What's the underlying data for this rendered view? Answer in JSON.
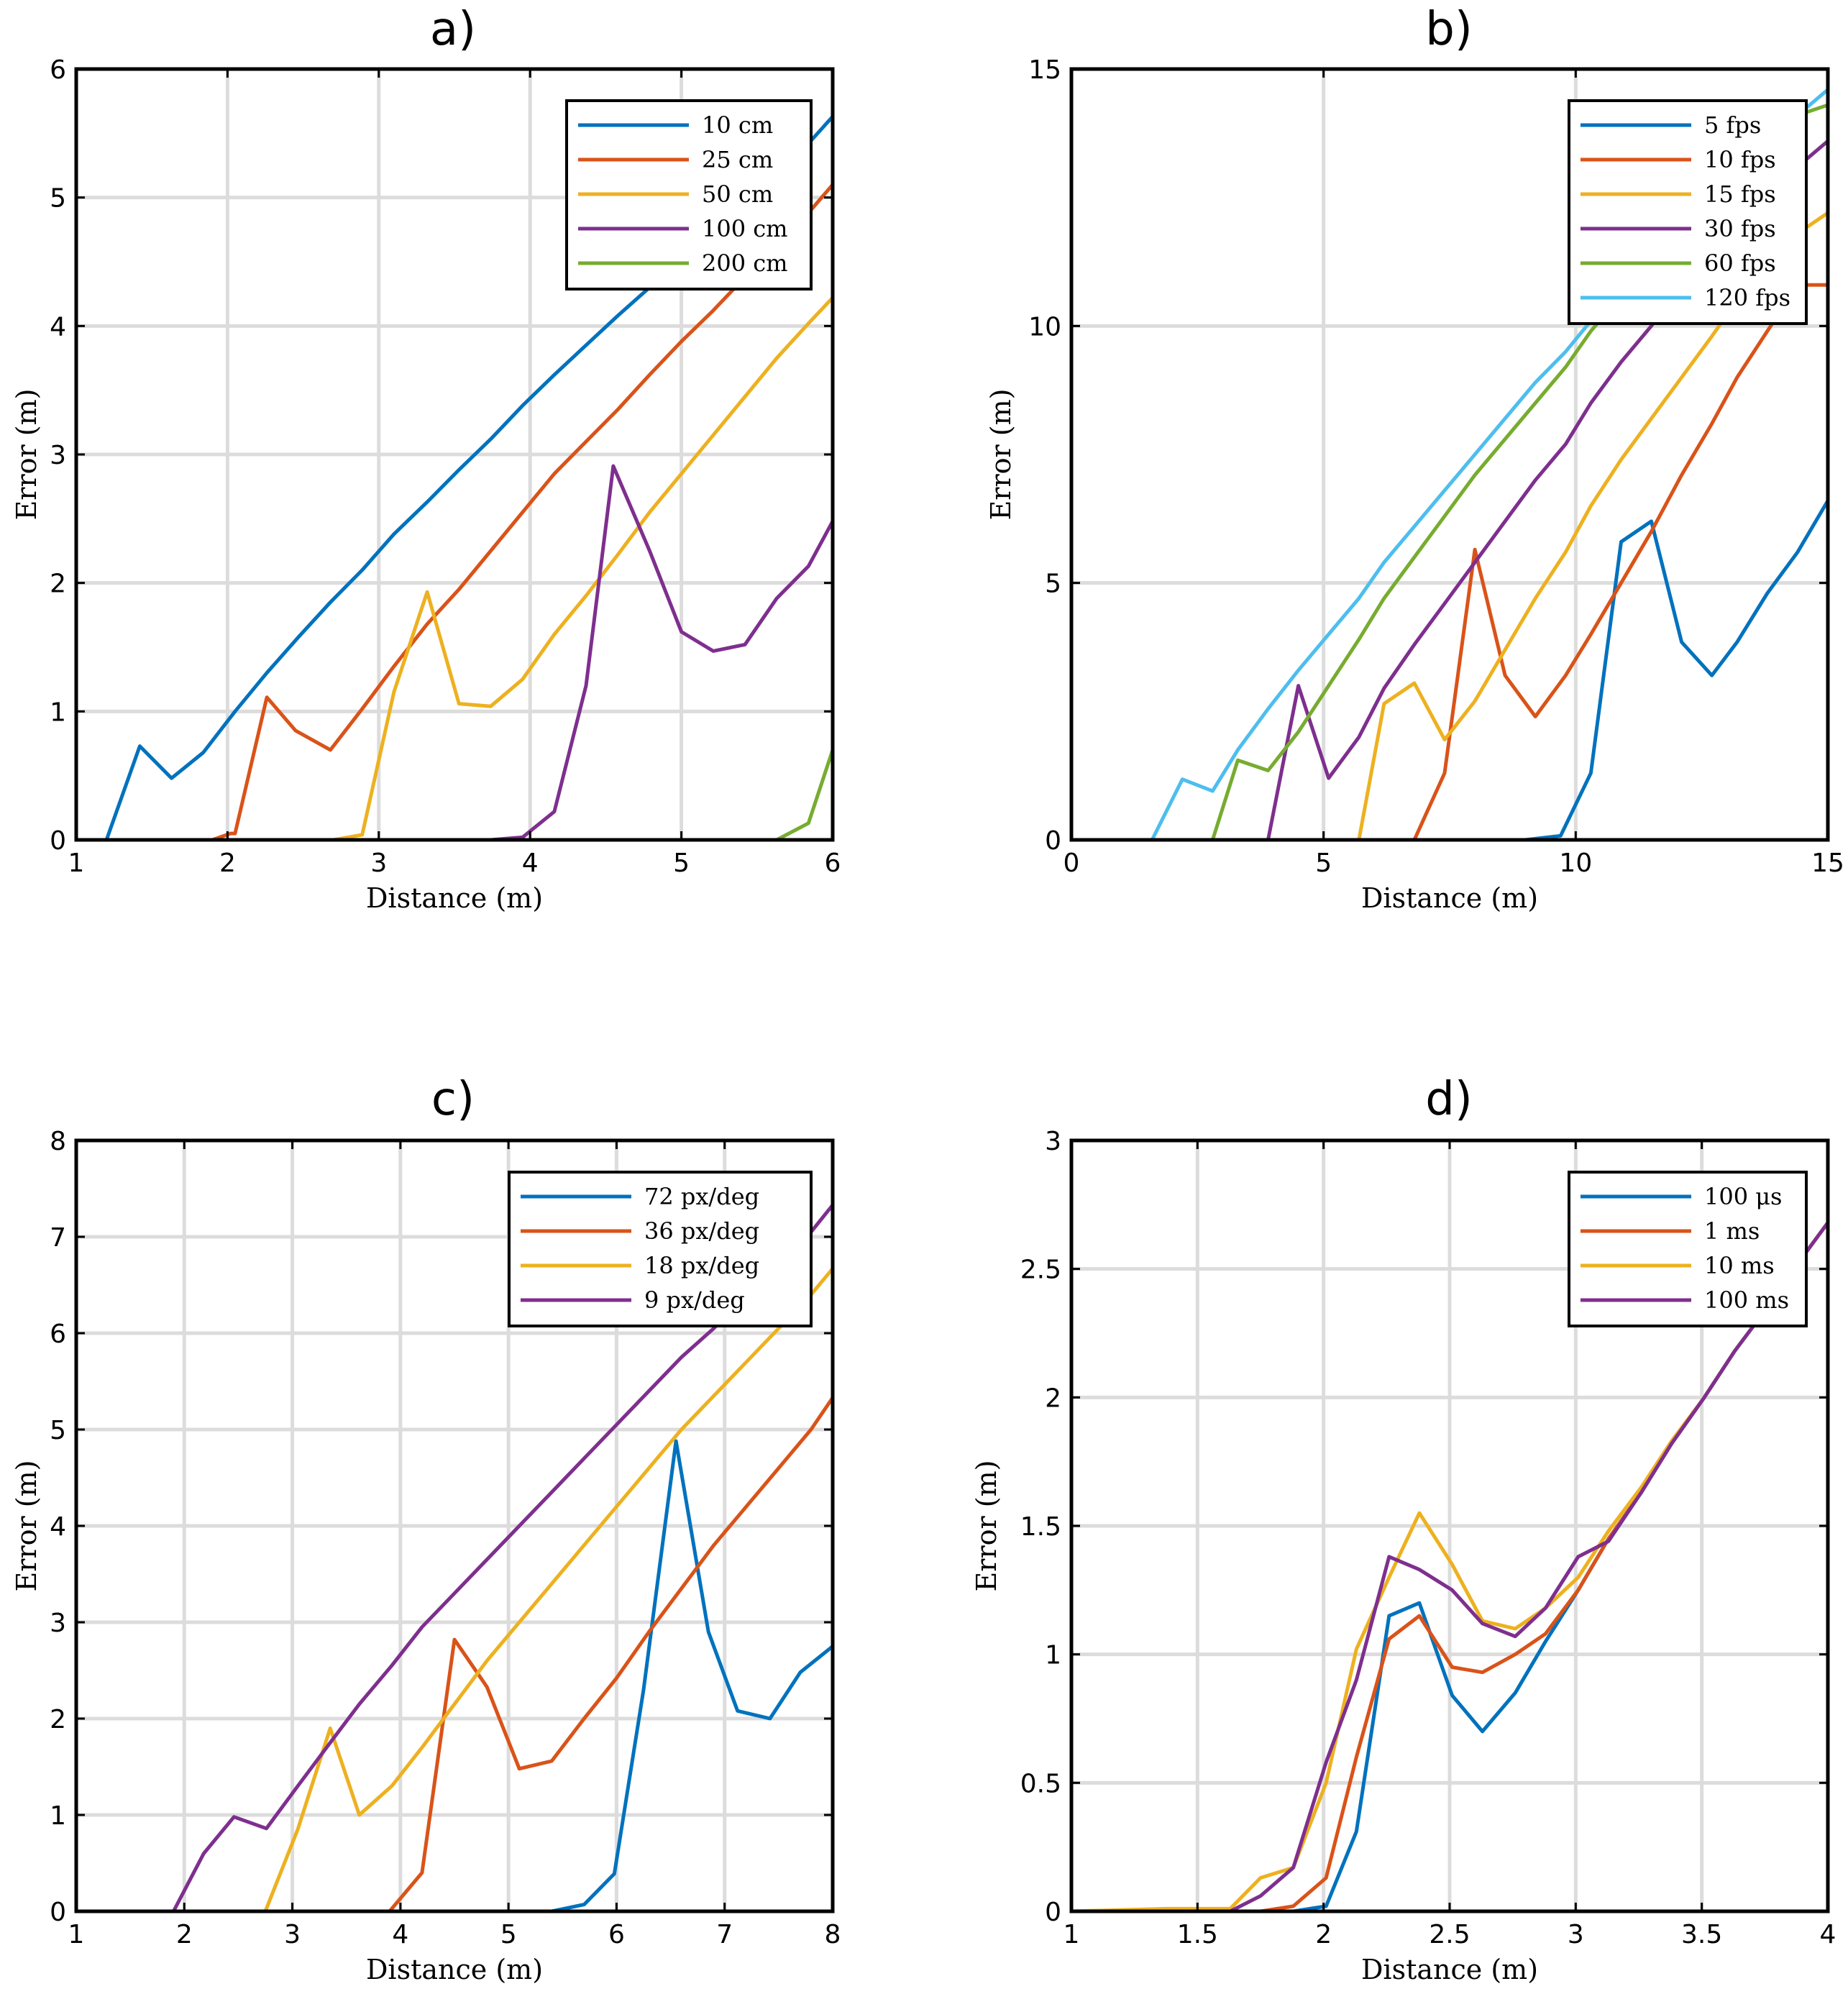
{
  "chart_data": [
    {
      "type": "line",
      "title": "a)",
      "xlabel": "Distance (m)",
      "ylabel": "Error (m)",
      "xlim": [
        1,
        6
      ],
      "ylim": [
        0,
        6
      ],
      "xticks": [
        1,
        2,
        3,
        4,
        5,
        6
      ],
      "yticks": [
        0,
        1,
        2,
        3,
        4,
        5,
        6
      ],
      "xtick_labels": [
        "1",
        "2",
        "3",
        "4",
        "5",
        "6"
      ],
      "ytick_labels": [
        "0",
        "1",
        "2",
        "3",
        "4",
        "5",
        "6"
      ],
      "grid": true,
      "legend_position": "top-right",
      "series": [
        {
          "name": "10 cm",
          "color": "#0072BD",
          "x": [
            1,
            1.2,
            1.42,
            1.63,
            1.84,
            2.05,
            2.26,
            2.47,
            2.68,
            2.89,
            3.1,
            3.32,
            3.53,
            3.74,
            3.95,
            4.16,
            4.37,
            4.58,
            4.79,
            5.0,
            5.21,
            5.42,
            5.63,
            5.84,
            6.0
          ],
          "y": [
            0,
            0,
            0.73,
            0.48,
            0.68,
            1.0,
            1.3,
            1.58,
            1.85,
            2.1,
            2.38,
            2.63,
            2.88,
            3.12,
            3.38,
            3.62,
            3.85,
            4.08,
            4.3,
            4.52,
            4.75,
            4.98,
            5.2,
            5.42,
            5.63
          ]
        },
        {
          "name": "25 cm",
          "color": "#D95319",
          "x": [
            1,
            1.5,
            1.9,
            2.02,
            2.05,
            2.26,
            2.45,
            2.68,
            2.89,
            3.1,
            3.32,
            3.53,
            3.74,
            3.95,
            4.16,
            4.37,
            4.58,
            4.79,
            5.0,
            5.21,
            5.42,
            5.63,
            5.84,
            6.0
          ],
          "y": [
            0,
            0,
            0,
            0.05,
            0.05,
            1.11,
            0.85,
            0.7,
            1.02,
            1.35,
            1.68,
            1.95,
            2.25,
            2.55,
            2.85,
            3.1,
            3.35,
            3.62,
            3.88,
            4.12,
            4.38,
            4.62,
            4.88,
            5.1
          ]
        },
        {
          "name": "50 cm",
          "color": "#EDB120",
          "x": [
            1,
            2.5,
            2.7,
            2.89,
            3.1,
            3.32,
            3.53,
            3.74,
            3.95,
            4.16,
            4.37,
            4.58,
            4.79,
            5.0,
            5.21,
            5.42,
            5.63,
            5.84,
            6.0
          ],
          "y": [
            0,
            0,
            0,
            0.04,
            1.15,
            1.93,
            1.06,
            1.04,
            1.25,
            1.6,
            1.9,
            2.22,
            2.55,
            2.85,
            3.15,
            3.45,
            3.75,
            4.02,
            4.22
          ]
        },
        {
          "name": "100 cm",
          "color": "#7E2F8E",
          "x": [
            1,
            3.5,
            3.74,
            3.95,
            4.16,
            4.37,
            4.55,
            4.79,
            5.0,
            5.21,
            5.42,
            5.63,
            5.84,
            6.0
          ],
          "y": [
            0,
            0,
            0,
            0.02,
            0.22,
            1.2,
            2.91,
            2.25,
            1.62,
            1.47,
            1.52,
            1.88,
            2.13,
            2.48
          ]
        },
        {
          "name": "200 cm",
          "color": "#77AC30",
          "x": [
            1,
            5.42,
            5.63,
            5.84,
            6.0
          ],
          "y": [
            0,
            0,
            0,
            0.13,
            0.7
          ]
        }
      ]
    },
    {
      "type": "line",
      "title": "b)",
      "xlabel": "Distance (m)",
      "ylabel": "Error (m)",
      "xlim": [
        0,
        15
      ],
      "ylim": [
        0,
        15
      ],
      "xticks": [
        0,
        5,
        10,
        15
      ],
      "yticks": [
        0,
        5,
        10,
        15
      ],
      "xtick_labels": [
        "0",
        "5",
        "10",
        "15"
      ],
      "ytick_labels": [
        "0",
        "5",
        "10",
        "15"
      ],
      "grid": true,
      "legend_position": "top-right",
      "series": [
        {
          "name": "5 fps",
          "color": "#0072BD",
          "x": [
            1,
            9.0,
            9.7,
            10.3,
            10.9,
            11.5,
            12.1,
            12.7,
            13.2,
            13.8,
            14.4,
            15.0
          ],
          "y": [
            0,
            0,
            0.08,
            1.3,
            5.8,
            6.2,
            3.85,
            3.2,
            3.85,
            4.8,
            5.6,
            6.6
          ]
        },
        {
          "name": "10 fps",
          "color": "#D95319",
          "x": [
            1,
            6.8,
            7.4,
            8.0,
            8.6,
            9.2,
            9.8,
            10.3,
            10.9,
            11.5,
            12.1,
            12.7,
            13.2,
            13.8,
            14.4,
            15.0
          ],
          "y": [
            0,
            0,
            1.3,
            5.65,
            3.2,
            2.4,
            3.2,
            4.0,
            5.0,
            6.0,
            7.1,
            8.1,
            9.0,
            9.9,
            10.8,
            10.8
          ]
        },
        {
          "name": "15 fps",
          "color": "#EDB120",
          "x": [
            1,
            5.7,
            6.2,
            6.8,
            7.4,
            8.0,
            8.6,
            9.2,
            9.8,
            10.3,
            10.9,
            11.5,
            12.1,
            12.7,
            13.2,
            13.8,
            14.4,
            15.0
          ],
          "y": [
            0,
            0,
            2.65,
            3.05,
            1.95,
            2.7,
            3.7,
            4.7,
            5.6,
            6.5,
            7.4,
            8.2,
            9.0,
            9.8,
            10.5,
            11.2,
            11.8,
            12.2
          ]
        },
        {
          "name": "30 fps",
          "color": "#7E2F8E",
          "x": [
            1,
            3.9,
            4.5,
            5.1,
            5.7,
            6.2,
            6.8,
            7.4,
            8.0,
            8.6,
            9.2,
            9.8,
            10.3,
            10.9,
            11.5,
            12.1,
            12.7,
            13.2,
            13.8,
            14.4,
            15.0
          ],
          "y": [
            0,
            0,
            3.0,
            1.2,
            2.0,
            2.95,
            3.8,
            4.6,
            5.4,
            6.2,
            7.0,
            7.7,
            8.5,
            9.3,
            10.0,
            10.8,
            11.4,
            12.0,
            12.6,
            13.1,
            13.6
          ]
        },
        {
          "name": "60 fps",
          "color": "#77AC30",
          "x": [
            1,
            2.8,
            3.3,
            3.9,
            4.5,
            5.1,
            5.7,
            6.2,
            6.8,
            7.4,
            8.0,
            8.6,
            9.2,
            9.8,
            10.3,
            10.9,
            11.5,
            12.1,
            12.7,
            13.2,
            13.8,
            14.4,
            15.0
          ],
          "y": [
            0,
            0,
            1.55,
            1.35,
            2.1,
            3.0,
            3.9,
            4.7,
            5.5,
            6.3,
            7.1,
            7.8,
            8.5,
            9.2,
            9.9,
            10.6,
            11.3,
            11.9,
            12.5,
            13.1,
            13.6,
            14.1,
            14.3
          ]
        },
        {
          "name": "120 fps",
          "color": "#4DBEEE",
          "x": [
            1,
            1.6,
            2.2,
            2.8,
            3.3,
            3.9,
            4.5,
            5.1,
            5.7,
            6.2,
            6.8,
            7.4,
            8.0,
            8.6,
            9.2,
            9.8,
            10.3,
            10.9,
            11.5,
            12.1,
            12.7,
            13.2,
            13.8,
            14.4,
            15.0
          ],
          "y": [
            0,
            0,
            1.18,
            0.95,
            1.75,
            2.55,
            3.3,
            4.0,
            4.7,
            5.4,
            6.1,
            6.8,
            7.5,
            8.2,
            8.9,
            9.5,
            10.1,
            10.7,
            11.3,
            11.9,
            12.5,
            13.1,
            13.6,
            14.1,
            14.6
          ]
        }
      ]
    },
    {
      "type": "line",
      "title": "c)",
      "xlabel": "Distance (m)",
      "ylabel": "Error (m)",
      "xlim": [
        1,
        8
      ],
      "ylim": [
        0,
        8
      ],
      "xticks": [
        1,
        2,
        3,
        4,
        5,
        6,
        7,
        8
      ],
      "yticks": [
        0,
        1,
        2,
        3,
        4,
        5,
        6,
        7,
        8
      ],
      "xtick_labels": [
        "1",
        "2",
        "3",
        "4",
        "5",
        "6",
        "7",
        "8"
      ],
      "ytick_labels": [
        "0",
        "1",
        "2",
        "3",
        "4",
        "5",
        "6",
        "7",
        "8"
      ],
      "grid": true,
      "legend_position": "top-right",
      "series": [
        {
          "name": "72 px/deg",
          "color": "#0072BD",
          "x": [
            1,
            5.4,
            5.7,
            5.98,
            6.25,
            6.55,
            6.85,
            7.12,
            7.42,
            7.7,
            8.0
          ],
          "y": [
            0,
            0,
            0.07,
            0.39,
            2.3,
            4.88,
            2.9,
            2.08,
            2.0,
            2.48,
            2.75
          ]
        },
        {
          "name": "36 px/deg",
          "color": "#D95319",
          "x": [
            1,
            3.9,
            4.2,
            4.5,
            4.8,
            5.1,
            5.4,
            5.7,
            6.0,
            6.3,
            6.6,
            6.9,
            7.2,
            7.5,
            7.8,
            8.0
          ],
          "y": [
            0,
            0,
            0.4,
            2.82,
            2.33,
            1.48,
            1.56,
            2.0,
            2.42,
            2.9,
            3.35,
            3.8,
            4.2,
            4.6,
            5.0,
            5.33
          ]
        },
        {
          "name": "18 px/deg",
          "color": "#EDB120",
          "x": [
            1,
            2.75,
            3.05,
            3.35,
            3.62,
            3.92,
            4.2,
            4.5,
            4.8,
            5.1,
            5.4,
            5.7,
            6.0,
            6.3,
            6.6,
            6.9,
            7.2,
            7.5,
            7.8,
            8.0
          ],
          "y": [
            0,
            0,
            0.85,
            1.9,
            1.0,
            1.3,
            1.7,
            2.15,
            2.6,
            3.0,
            3.4,
            3.8,
            4.2,
            4.6,
            5.0,
            5.35,
            5.7,
            6.05,
            6.4,
            6.67
          ]
        },
        {
          "name": "9 px/deg",
          "color": "#7E2F8E",
          "x": [
            1,
            1.9,
            2.18,
            2.46,
            2.76,
            3.05,
            3.35,
            3.62,
            3.92,
            4.2,
            4.5,
            4.8,
            5.1,
            5.4,
            5.7,
            6.0,
            6.3,
            6.6,
            6.9,
            7.2,
            7.5,
            7.8,
            8.0
          ],
          "y": [
            0,
            0,
            0.6,
            0.98,
            0.86,
            1.3,
            1.75,
            2.15,
            2.55,
            2.95,
            3.3,
            3.65,
            4.0,
            4.35,
            4.7,
            5.05,
            5.4,
            5.75,
            6.05,
            6.4,
            6.7,
            7.05,
            7.33
          ]
        }
      ]
    },
    {
      "type": "line",
      "title": "d)",
      "xlabel": "Distance (m)",
      "ylabel": "Error (m)",
      "xlim": [
        1,
        4
      ],
      "ylim": [
        0,
        3
      ],
      "xticks": [
        1,
        1.5,
        2,
        2.5,
        3,
        3.5,
        4
      ],
      "yticks": [
        0,
        0.5,
        1,
        1.5,
        2,
        2.5,
        3
      ],
      "xtick_labels": [
        "1",
        "1.5",
        "2",
        "2.5",
        "3",
        "3.5",
        "4"
      ],
      "ytick_labels": [
        "0",
        "0.5",
        "1",
        "1.5",
        "2",
        "2.5",
        "3"
      ],
      "grid": true,
      "legend_position": "top-right",
      "series": [
        {
          "name": "100 μs",
          "color": "#0072BD",
          "x": [
            1,
            1.63,
            1.75,
            1.88,
            2.01,
            2.13,
            2.26,
            2.38,
            2.51,
            2.63,
            2.76,
            2.88,
            3.01,
            3.13,
            3.26,
            3.38,
            3.51,
            3.63,
            3.76,
            3.88,
            4.0
          ],
          "y": [
            0,
            0,
            0,
            0,
            0.02,
            0.31,
            1.15,
            1.2,
            0.84,
            0.7,
            0.85,
            1.05,
            1.25,
            1.45,
            1.63,
            1.82,
            2.0,
            2.18,
            2.35,
            2.52,
            2.68
          ]
        },
        {
          "name": "1 ms",
          "color": "#D95319",
          "x": [
            1,
            1.63,
            1.75,
            1.88,
            2.01,
            2.13,
            2.26,
            2.38,
            2.51,
            2.63,
            2.76,
            2.88,
            3.01,
            3.13,
            3.26,
            3.38,
            3.51,
            3.63,
            3.76,
            3.88,
            4.0
          ],
          "y": [
            0,
            0,
            0,
            0.02,
            0.13,
            0.6,
            1.06,
            1.15,
            0.95,
            0.93,
            1.0,
            1.08,
            1.25,
            1.45,
            1.63,
            1.82,
            2.0,
            2.18,
            2.35,
            2.52,
            2.68
          ]
        },
        {
          "name": "10 ms",
          "color": "#EDB120",
          "x": [
            1,
            1.38,
            1.63,
            1.75,
            1.88,
            2.01,
            2.13,
            2.26,
            2.38,
            2.51,
            2.63,
            2.76,
            2.88,
            3.01,
            3.13,
            3.26,
            3.38,
            3.51,
            3.63,
            3.76,
            3.88,
            4.0
          ],
          "y": [
            0,
            0.01,
            0.01,
            0.13,
            0.17,
            0.5,
            1.02,
            1.3,
            1.55,
            1.35,
            1.13,
            1.1,
            1.18,
            1.3,
            1.48,
            1.65,
            1.83,
            2.0,
            2.18,
            2.35,
            2.52,
            2.68
          ]
        },
        {
          "name": "100 ms",
          "color": "#7E2F8E",
          "x": [
            1,
            1.63,
            1.75,
            1.88,
            2.01,
            2.13,
            2.26,
            2.38,
            2.51,
            2.63,
            2.76,
            2.88,
            3.01,
            3.13,
            3.26,
            3.38,
            3.51,
            3.63,
            3.76,
            3.88,
            4.0
          ],
          "y": [
            0,
            0,
            0.06,
            0.17,
            0.58,
            0.9,
            1.38,
            1.33,
            1.25,
            1.12,
            1.07,
            1.18,
            1.38,
            1.44,
            1.63,
            1.82,
            2.0,
            2.18,
            2.35,
            2.52,
            2.68
          ]
        }
      ]
    }
  ]
}
